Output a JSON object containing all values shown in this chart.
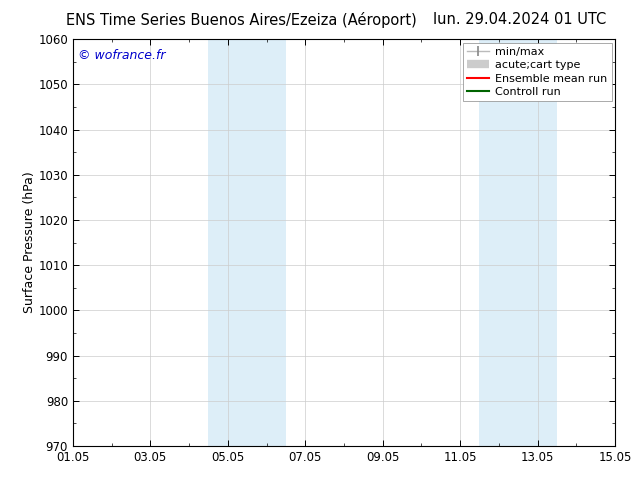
{
  "title": "ENS Time Series Buenos Aires/Ezeiza (Aéroport)",
  "date_label": "lun. 29.04.2024 01 UTC",
  "ylabel": "Surface Pressure (hPa)",
  "watermark": "© wofrance.fr",
  "watermark_color": "#0000cc",
  "ylim": [
    970,
    1060
  ],
  "yticks": [
    970,
    980,
    990,
    1000,
    1010,
    1020,
    1030,
    1040,
    1050,
    1060
  ],
  "xtick_labels": [
    "01.05",
    "03.05",
    "05.05",
    "07.05",
    "09.05",
    "11.05",
    "13.05",
    "15.05"
  ],
  "xtick_positions": [
    0,
    2,
    4,
    6,
    8,
    10,
    12,
    14
  ],
  "xlim": [
    0,
    14
  ],
  "shaded_bands": [
    {
      "x_start": 3.5,
      "x_end": 5.5,
      "color": "#ddeef8"
    },
    {
      "x_start": 10.5,
      "x_end": 12.5,
      "color": "#ddeef8"
    }
  ],
  "legend_entries": [
    {
      "label": "min/max"
    },
    {
      "label": "acute;cart type"
    },
    {
      "label": "Ensemble mean run"
    },
    {
      "label": "Controll run"
    }
  ],
  "background_color": "#ffffff",
  "grid_color": "#cccccc",
  "title_fontsize": 10.5,
  "date_fontsize": 10.5,
  "tick_fontsize": 8.5,
  "ylabel_fontsize": 9,
  "watermark_fontsize": 9,
  "legend_fontsize": 8
}
